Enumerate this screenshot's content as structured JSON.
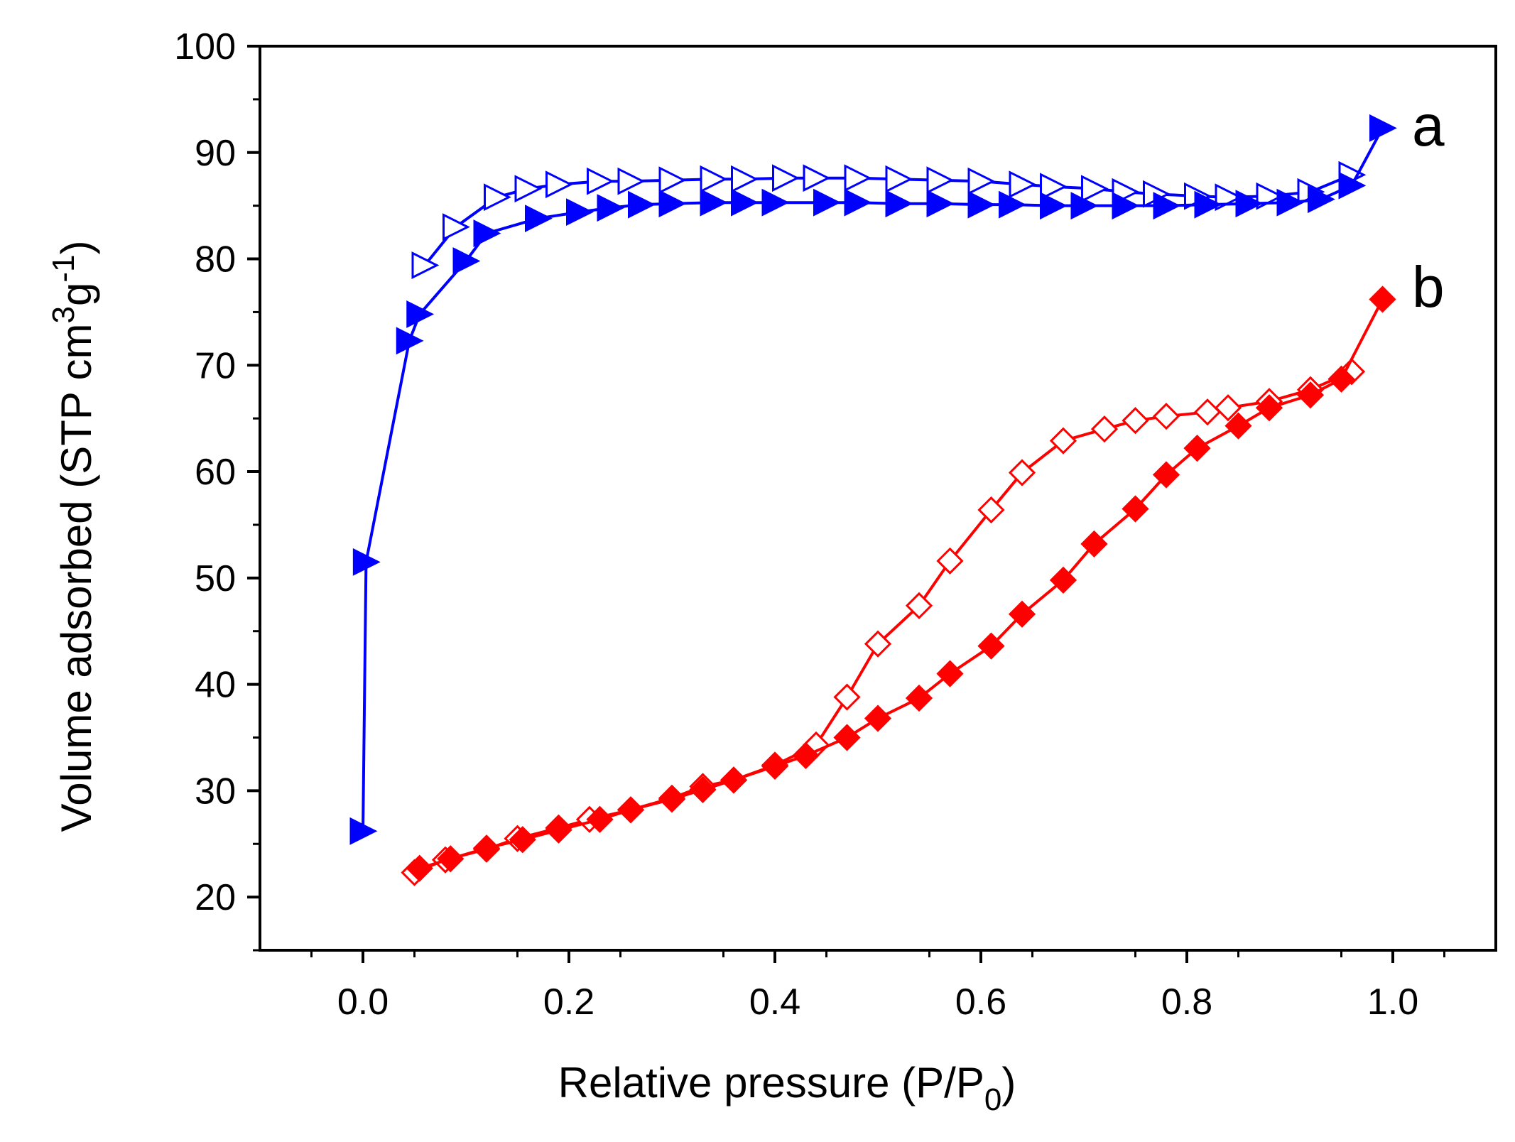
{
  "chart_data": {
    "type": "line",
    "xlabel": {
      "main": "Relative pressure (P/P",
      "sub": "0",
      "end": ")"
    },
    "ylabel": {
      "main": "Volume adsorbed (STP cm",
      "sup1": "3",
      "mid": "g",
      "sup2": "-1",
      "end": ")"
    },
    "xlim": [
      -0.1,
      1.1
    ],
    "ylim": [
      15,
      100
    ],
    "xticks": [
      "0.0",
      "0.2",
      "0.4",
      "0.6",
      "0.8",
      "1.0"
    ],
    "yticks": [
      "20",
      "30",
      "40",
      "50",
      "60",
      "70",
      "80",
      "90",
      "100"
    ],
    "grid": false,
    "series": [
      {
        "name": "a",
        "color": "#0000ff",
        "marker": "triangle-right",
        "adsorption": {
          "x": [
            0.0,
            0.003,
            0.045,
            0.055,
            0.1,
            0.12,
            0.17,
            0.21,
            0.24,
            0.27,
            0.3,
            0.34,
            0.37,
            0.4,
            0.45,
            0.48,
            0.52,
            0.56,
            0.6,
            0.63,
            0.67,
            0.7,
            0.74,
            0.78,
            0.82,
            0.86,
            0.9,
            0.93,
            0.96,
            0.99
          ],
          "y": [
            26.2,
            51.5,
            72.3,
            74.8,
            79.8,
            82.4,
            83.8,
            84.4,
            84.8,
            85.1,
            85.2,
            85.3,
            85.3,
            85.3,
            85.3,
            85.3,
            85.2,
            85.2,
            85.1,
            85.1,
            85.0,
            85.0,
            85.0,
            85.0,
            85.1,
            85.2,
            85.3,
            85.6,
            86.9,
            92.3
          ]
        },
        "desorption": {
          "x": [
            0.96,
            0.92,
            0.88,
            0.84,
            0.81,
            0.77,
            0.74,
            0.71,
            0.67,
            0.64,
            0.6,
            0.56,
            0.52,
            0.48,
            0.44,
            0.41,
            0.37,
            0.34,
            0.3,
            0.26,
            0.23,
            0.19,
            0.16,
            0.13,
            0.09,
            0.06
          ],
          "y": [
            87.9,
            86.3,
            85.9,
            85.8,
            85.9,
            86.1,
            86.3,
            86.6,
            86.8,
            87.0,
            87.3,
            87.4,
            87.5,
            87.6,
            87.6,
            87.6,
            87.5,
            87.5,
            87.4,
            87.3,
            87.3,
            87.0,
            86.6,
            85.8,
            83.0,
            79.4
          ]
        }
      },
      {
        "name": "b",
        "color": "#ff0000",
        "marker": "diamond",
        "adsorption": {
          "x": [
            0.055,
            0.085,
            0.12,
            0.155,
            0.19,
            0.23,
            0.26,
            0.3,
            0.33,
            0.36,
            0.4,
            0.43,
            0.47,
            0.5,
            0.54,
            0.57,
            0.61,
            0.64,
            0.68,
            0.71,
            0.75,
            0.78,
            0.81,
            0.85,
            0.88,
            0.92,
            0.95,
            0.99
          ],
          "y": [
            22.7,
            23.6,
            24.6,
            25.4,
            26.3,
            27.3,
            28.2,
            29.2,
            30.1,
            31.0,
            32.3,
            33.3,
            35.0,
            36.8,
            38.7,
            41.0,
            43.6,
            46.6,
            49.8,
            53.2,
            56.5,
            59.7,
            62.2,
            64.3,
            66.0,
            67.2,
            68.7,
            76.2
          ]
        },
        "desorption": {
          "x": [
            0.96,
            0.92,
            0.88,
            0.84,
            0.82,
            0.78,
            0.75,
            0.72,
            0.68,
            0.64,
            0.61,
            0.57,
            0.54,
            0.5,
            0.47,
            0.44,
            0.4,
            0.36,
            0.33,
            0.3,
            0.26,
            0.22,
            0.19,
            0.15,
            0.12,
            0.08,
            0.05
          ],
          "y": [
            69.4,
            67.7,
            66.6,
            66.0,
            65.6,
            65.2,
            64.8,
            64.0,
            62.9,
            59.9,
            56.4,
            51.6,
            47.4,
            43.8,
            38.8,
            34.3,
            32.4,
            31.0,
            30.4,
            29.3,
            28.2,
            27.3,
            26.5,
            25.5,
            24.5,
            23.5,
            22.3
          ]
        }
      }
    ]
  }
}
